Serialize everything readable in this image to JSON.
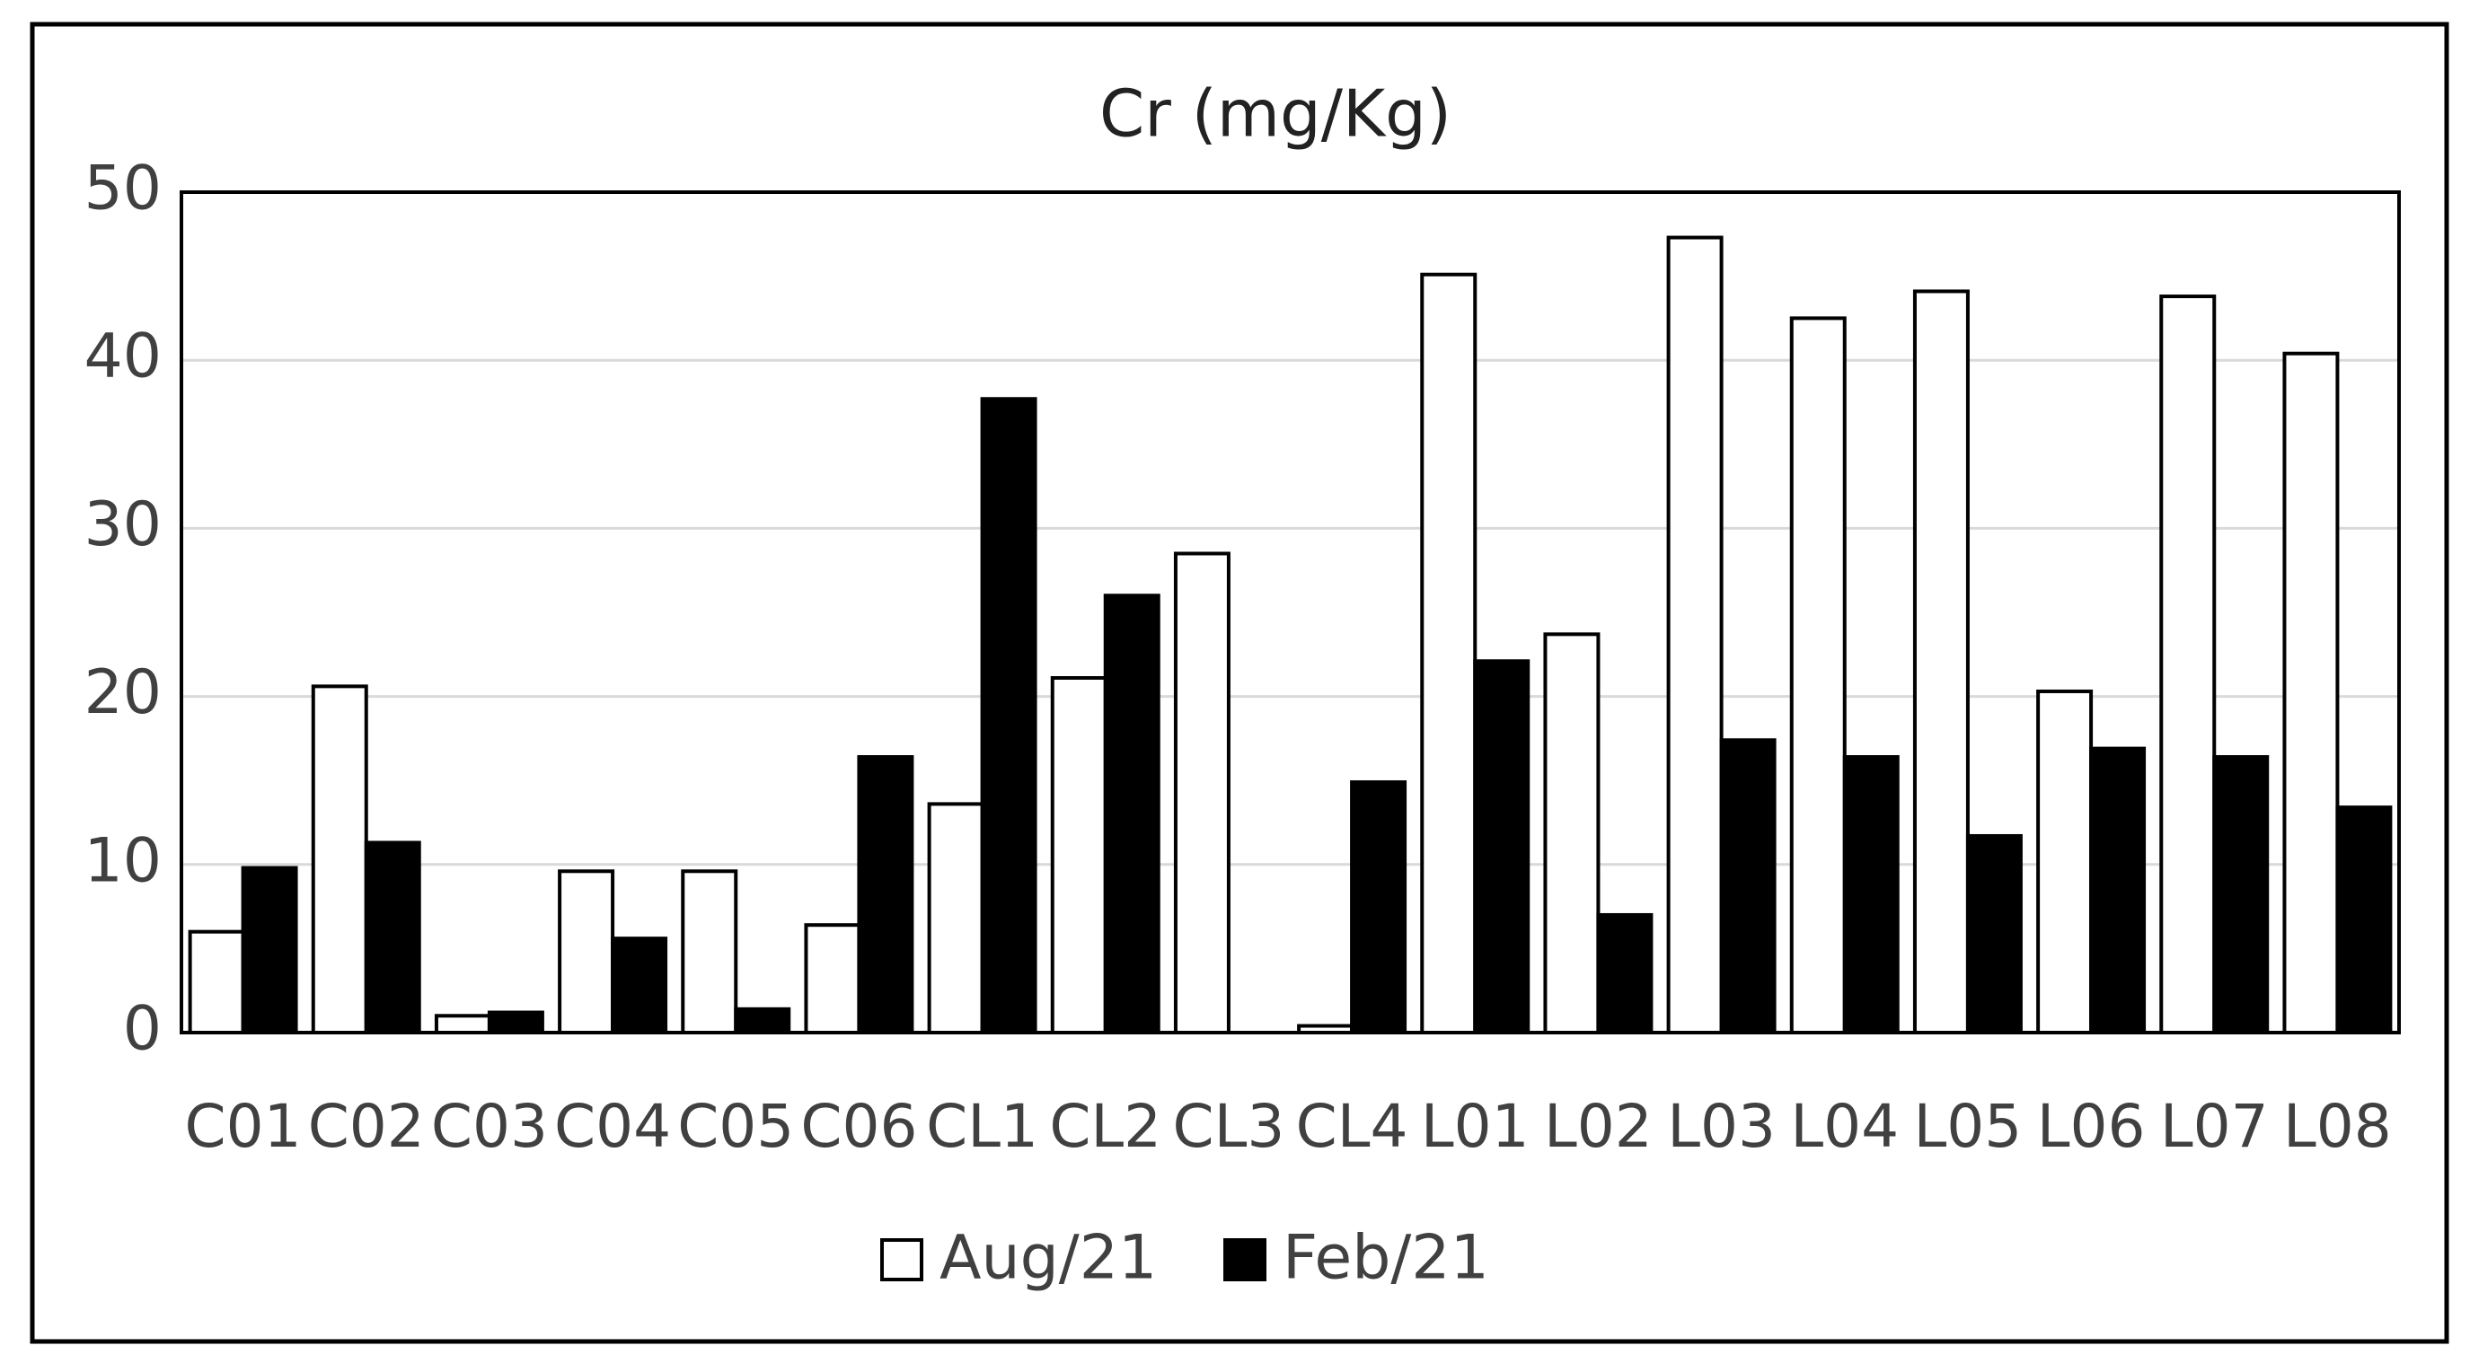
{
  "chart_data": {
    "type": "bar",
    "title": "Cr (mg/Kg)",
    "categories": [
      "C01",
      "C02",
      "C03",
      "C04",
      "C05",
      "C06",
      "CL1",
      "CL2",
      "CL3",
      "CL4",
      "L01",
      "L02",
      "L03",
      "L04",
      "L05",
      "L06",
      "L07",
      "L08"
    ],
    "series": [
      {
        "name": "Aug/21",
        "color": "#ffffff",
        "values": [
          6.0,
          20.6,
          1.0,
          9.6,
          9.6,
          6.4,
          13.6,
          21.1,
          28.5,
          0.4,
          45.1,
          23.7,
          47.3,
          42.5,
          44.1,
          20.3,
          43.8,
          40.4
        ]
      },
      {
        "name": "Feb/21",
        "color": "#000000",
        "values": [
          9.8,
          11.3,
          1.2,
          5.6,
          1.4,
          16.4,
          37.7,
          26.0,
          0,
          14.9,
          22.1,
          7.0,
          17.4,
          16.4,
          11.7,
          16.9,
          16.4,
          13.4
        ]
      }
    ],
    "ylim": [
      0,
      50
    ],
    "yticks": [
      0,
      10,
      20,
      30,
      40,
      50
    ],
    "grid": true,
    "legend": "bottom"
  }
}
